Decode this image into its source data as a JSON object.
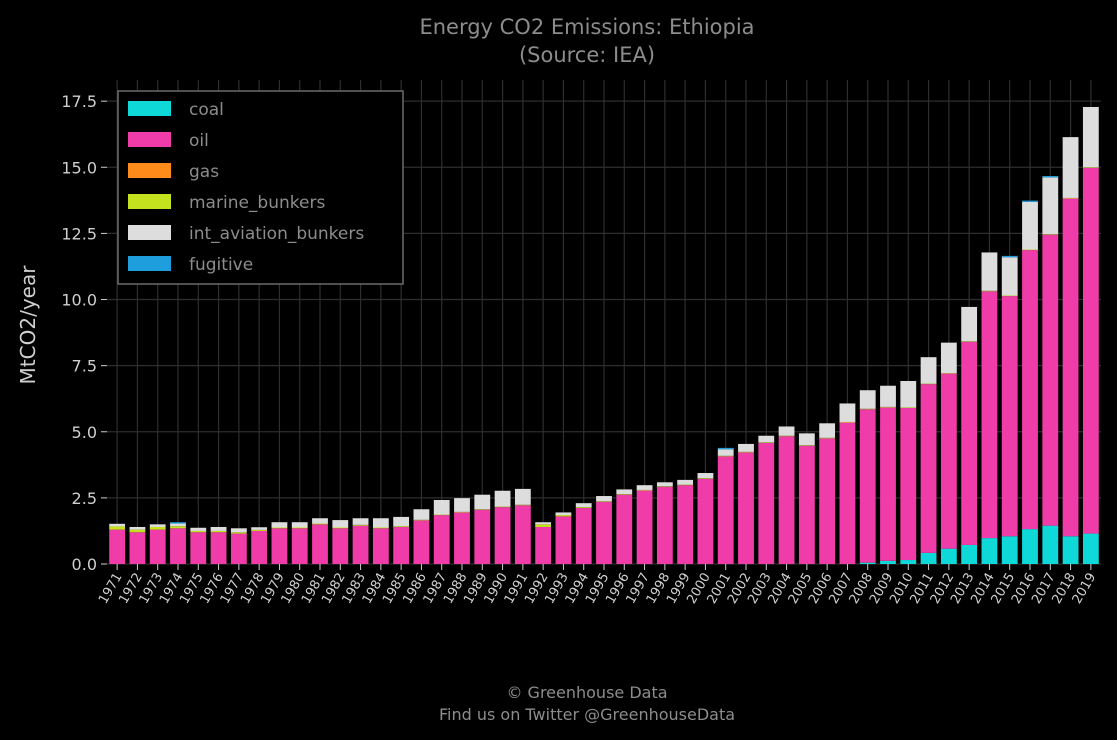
{
  "chart_data": {
    "type": "bar",
    "stacked": true,
    "title": "Energy CO2 Emissions: Ethiopia",
    "subtitle": "(Source: IEA)",
    "xlabel": "",
    "ylabel": "MtCO2/year",
    "ylim": [
      0,
      18.3
    ],
    "yticks": [
      0.0,
      2.5,
      5.0,
      7.5,
      10.0,
      12.5,
      15.0,
      17.5
    ],
    "ytick_labels": [
      "0.0",
      "2.5",
      "5.0",
      "7.5",
      "10.0",
      "12.5",
      "15.0",
      "17.5"
    ],
    "grid": true,
    "legend_position": "top-left",
    "categories": [
      "1971",
      "1972",
      "1973",
      "1974",
      "1975",
      "1976",
      "1977",
      "1978",
      "1979",
      "1980",
      "1981",
      "1982",
      "1983",
      "1984",
      "1985",
      "1986",
      "1987",
      "1988",
      "1989",
      "1990",
      "1991",
      "1992",
      "1993",
      "1994",
      "1995",
      "1996",
      "1997",
      "1998",
      "1999",
      "2000",
      "2001",
      "2002",
      "2003",
      "2004",
      "2005",
      "2006",
      "2007",
      "2008",
      "2009",
      "2010",
      "2011",
      "2012",
      "2013",
      "2014",
      "2015",
      "2016",
      "2017",
      "2018",
      "2019"
    ],
    "series": [
      {
        "name": "coal",
        "color": "#0fd8d8",
        "values": [
          0,
          0,
          0,
          0,
          0,
          0,
          0,
          0,
          0,
          0,
          0,
          0,
          0,
          0,
          0,
          0,
          0,
          0,
          0,
          0,
          0,
          0,
          0,
          0,
          0,
          0,
          0,
          0,
          0,
          0,
          0,
          0,
          0,
          0,
          0,
          0,
          0,
          0.05,
          0.12,
          0.15,
          0.42,
          0.58,
          0.72,
          0.98,
          1.05,
          1.32,
          1.45,
          1.05,
          1.15
        ]
      },
      {
        "name": "oil",
        "color": "#f03ca8",
        "values": [
          1.3,
          1.2,
          1.3,
          1.35,
          1.2,
          1.2,
          1.15,
          1.25,
          1.35,
          1.35,
          1.5,
          1.35,
          1.45,
          1.35,
          1.4,
          1.65,
          1.85,
          1.95,
          2.05,
          2.15,
          2.22,
          1.4,
          1.8,
          2.12,
          2.35,
          2.62,
          2.78,
          2.92,
          2.98,
          3.22,
          4.07,
          4.22,
          4.58,
          4.83,
          4.47,
          4.75,
          5.35,
          5.8,
          5.8,
          5.75,
          6.38,
          6.62,
          7.68,
          9.33,
          9.08,
          10.55,
          11.0,
          12.77,
          13.83
        ]
      },
      {
        "name": "gas",
        "color": "#ff8c1a",
        "values": [
          0,
          0,
          0,
          0,
          0,
          0,
          0,
          0,
          0,
          0,
          0,
          0,
          0,
          0,
          0,
          0,
          0,
          0,
          0,
          0,
          0,
          0,
          0,
          0,
          0,
          0,
          0,
          0,
          0,
          0,
          0,
          0,
          0,
          0,
          0,
          0,
          0,
          0,
          0,
          0,
          0,
          0,
          0,
          0,
          0,
          0,
          0,
          0,
          0
        ]
      },
      {
        "name": "marine_bunkers",
        "color": "#c4e21d",
        "values": [
          0.12,
          0.1,
          0.1,
          0.08,
          0.05,
          0.05,
          0.05,
          0.04,
          0.03,
          0.03,
          0.03,
          0.03,
          0.03,
          0.03,
          0.03,
          0.02,
          0.02,
          0.02,
          0.02,
          0.02,
          0.02,
          0.1,
          0.05,
          0.03,
          0.02,
          0.02,
          0.02,
          0.02,
          0.02,
          0.02,
          0.02,
          0.02,
          0.02,
          0.02,
          0.02,
          0.02,
          0.02,
          0.02,
          0.02,
          0.02,
          0.02,
          0.02,
          0.02,
          0.02,
          0.02,
          0.02,
          0.02,
          0.02,
          0.02
        ]
      },
      {
        "name": "int_aviation_bunkers",
        "color": "#dddddd",
        "values": [
          0.1,
          0.1,
          0.1,
          0.1,
          0.12,
          0.15,
          0.15,
          0.1,
          0.2,
          0.2,
          0.2,
          0.28,
          0.25,
          0.35,
          0.35,
          0.4,
          0.55,
          0.52,
          0.55,
          0.6,
          0.6,
          0.08,
          0.1,
          0.15,
          0.2,
          0.18,
          0.18,
          0.15,
          0.18,
          0.2,
          0.25,
          0.3,
          0.25,
          0.35,
          0.45,
          0.55,
          0.7,
          0.7,
          0.8,
          1.0,
          1.0,
          1.15,
          1.3,
          1.45,
          1.45,
          1.8,
          2.15,
          2.3,
          2.28
        ]
      },
      {
        "name": "fugitive",
        "color": "#1f9ede",
        "values": [
          0,
          0,
          0,
          0.05,
          0,
          0,
          0,
          0,
          0,
          0,
          0,
          0,
          0,
          0,
          0,
          0,
          0,
          0,
          0,
          0,
          0,
          0,
          0,
          0,
          0,
          0,
          0,
          0,
          0,
          0,
          0.05,
          0,
          0,
          0,
          0,
          0,
          0,
          0,
          0,
          0,
          0,
          0,
          0,
          0,
          0.05,
          0.05,
          0.05,
          0,
          0
        ]
      }
    ]
  },
  "footer": {
    "line1": "© Greenhouse Data",
    "line2": "Find us on Twitter @GreenhouseData"
  }
}
